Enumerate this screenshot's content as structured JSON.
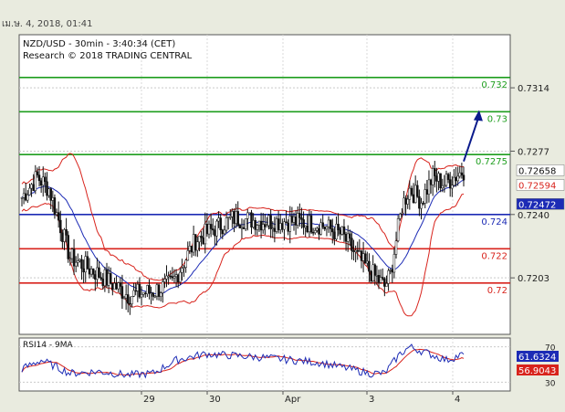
{
  "header": {
    "datetime": "เม.ษ. 4, 2018, 01:41"
  },
  "chart_data": [
    {
      "type": "candlestick",
      "title": "NZD/USD - 30min - 3:40:34 (CET)",
      "subtitle": "Research © 2018 TRADING CENTRAL",
      "ylim": [
        0.717,
        0.7345
      ],
      "y_ticks": [
        0.7314,
        0.7277,
        0.724,
        0.7203
      ],
      "x_ticks": [
        "29",
        "30",
        "Apr",
        "3",
        "4"
      ],
      "bars": 230,
      "price_path": [
        [
          0,
          0.725
        ],
        [
          8,
          0.7262
        ],
        [
          14,
          0.7255
        ],
        [
          25,
          0.7215
        ],
        [
          40,
          0.7205
        ],
        [
          55,
          0.7193
        ],
        [
          68,
          0.7195
        ],
        [
          78,
          0.72
        ],
        [
          90,
          0.7225
        ],
        [
          100,
          0.7232
        ],
        [
          110,
          0.7238
        ],
        [
          125,
          0.7236
        ],
        [
          140,
          0.7236
        ],
        [
          155,
          0.7234
        ],
        [
          166,
          0.7228
        ],
        [
          174,
          0.7215
        ],
        [
          182,
          0.7205
        ],
        [
          188,
          0.7198
        ],
        [
          191,
          0.7205
        ],
        [
          197,
          0.7245
        ],
        [
          201,
          0.7255
        ],
        [
          207,
          0.7248
        ],
        [
          213,
          0.7262
        ],
        [
          219,
          0.7258
        ],
        [
          229,
          0.72658
        ]
      ],
      "levels": [
        {
          "value": 0.732,
          "label": "0.732",
          "color": "#1e9e1e"
        },
        {
          "value": 0.73,
          "label": "0.73",
          "color": "#1e9e1e"
        },
        {
          "value": 0.7275,
          "label": "0.7275",
          "color": "#1e9e1e"
        },
        {
          "value": 0.724,
          "label": "0.724",
          "color": "#1c2bb5"
        },
        {
          "value": 0.722,
          "label": "0.722",
          "color": "#d8231c"
        },
        {
          "value": 0.72,
          "label": "0.72",
          "color": "#d8231c"
        }
      ],
      "price_tags": [
        {
          "value": 0.72658,
          "label": "0.72658",
          "bg": "#ffffff",
          "fg": "#111111"
        },
        {
          "value": 0.72594,
          "label": "0.72594",
          "bg": "#ffffff",
          "fg": "#d8231c"
        },
        {
          "value": 0.72472,
          "label": "0.72472",
          "bg": "#1c2bb5",
          "fg": "#ffffff"
        }
      ],
      "arrow": {
        "from": [
          229,
          0.7271
        ],
        "to": [
          237,
          0.7301
        ],
        "color": "#0a1a8c"
      }
    },
    {
      "type": "line",
      "title": "RSI14 - 9MA",
      "ylim": [
        20,
        80
      ],
      "y_ticks": [
        30,
        70
      ],
      "series": [
        {
          "name": "RSI14",
          "color": "#1c2bb5"
        },
        {
          "name": "9MA",
          "color": "#d8231c"
        }
      ],
      "rsi_path": [
        [
          0,
          45
        ],
        [
          10,
          55
        ],
        [
          25,
          40
        ],
        [
          40,
          42
        ],
        [
          55,
          38
        ],
        [
          68,
          40
        ],
        [
          80,
          55
        ],
        [
          95,
          62
        ],
        [
          110,
          60
        ],
        [
          125,
          58
        ],
        [
          140,
          55
        ],
        [
          155,
          52
        ],
        [
          170,
          45
        ],
        [
          180,
          40
        ],
        [
          188,
          40
        ],
        [
          196,
          62
        ],
        [
          201,
          70
        ],
        [
          210,
          63
        ],
        [
          220,
          55
        ],
        [
          229,
          61.6324
        ]
      ],
      "ma_last": 56.9043,
      "tags": [
        {
          "label": "61.6324",
          "bg": "#1c2bb5",
          "fg": "#ffffff"
        },
        {
          "label": "56.9043",
          "bg": "#d8231c",
          "fg": "#ffffff"
        }
      ]
    }
  ]
}
